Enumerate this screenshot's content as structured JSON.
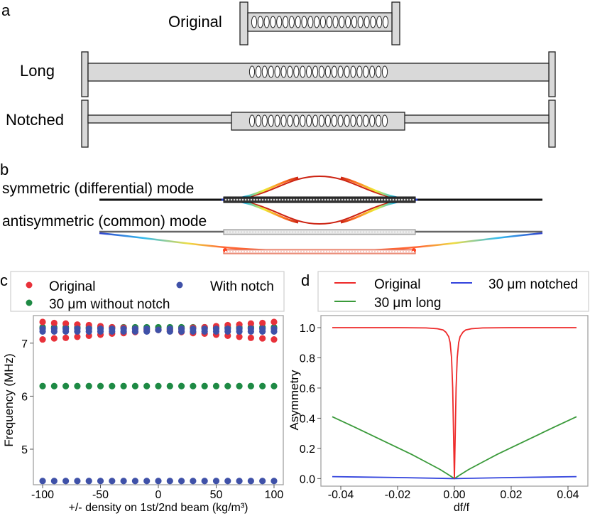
{
  "panel_a": {
    "label": "a",
    "devices": [
      {
        "name": "Original"
      },
      {
        "name": "Long"
      },
      {
        "name": "Notched"
      }
    ]
  },
  "panel_b": {
    "label": "b",
    "modes": [
      {
        "name": "symmetric (differential) mode"
      },
      {
        "name": "antisymmetric (common) mode"
      }
    ]
  },
  "panel_c": {
    "label": "c",
    "legend": [
      "Original",
      "With notch",
      "30 μm without notch"
    ]
  },
  "panel_d": {
    "label": "d",
    "legend": [
      "Original",
      "30 μm notched",
      "30 μm long"
    ]
  },
  "colors": {
    "original_c": "#e8313a",
    "notch_c": "#3f51a8",
    "nonotch_c": "#1e8a44",
    "original_d": "#ee2a2a",
    "long_d": "#3a9a3a",
    "notched_d": "#3344dd",
    "device_fill": "#d9d9d9"
  },
  "chart_data": [
    {
      "type": "scatter",
      "xlabel": "+/- density on 1st/2nd beam (kg/m³)",
      "ylabel": "Frequency (MHz)",
      "xlim": [
        -108,
        108
      ],
      "ylim": [
        4.33,
        7.52
      ],
      "xticks": [
        -100,
        -50,
        0,
        50,
        100
      ],
      "yticks": [
        5,
        6,
        7
      ],
      "grid": false,
      "legend_position": "top",
      "x": [
        -100,
        -90,
        -80,
        -70,
        -60,
        -50,
        -40,
        -30,
        -20,
        -10,
        0,
        10,
        20,
        30,
        40,
        50,
        60,
        70,
        80,
        90,
        100
      ],
      "series": [
        {
          "name": "Original",
          "color_key": "original_c",
          "upper": [
            7.4,
            7.38,
            7.37,
            7.35,
            7.34,
            7.32,
            7.3,
            7.29,
            7.27,
            7.26,
            7.25,
            7.26,
            7.27,
            7.29,
            7.3,
            7.32,
            7.34,
            7.35,
            7.37,
            7.38,
            7.4
          ],
          "lower": [
            7.07,
            7.09,
            7.1,
            7.12,
            7.14,
            7.16,
            7.18,
            7.19,
            7.21,
            7.23,
            7.25,
            7.23,
            7.21,
            7.19,
            7.18,
            7.16,
            7.14,
            7.12,
            7.1,
            7.09,
            7.07
          ]
        },
        {
          "name": "With notch",
          "color_key": "notch_c",
          "upper": [
            7.27,
            7.27,
            7.27,
            7.27,
            7.27,
            7.27,
            7.27,
            7.27,
            7.27,
            7.27,
            7.25,
            7.27,
            7.27,
            7.27,
            7.27,
            7.27,
            7.27,
            7.27,
            7.27,
            7.27,
            7.27
          ],
          "lower": [
            7.22,
            7.22,
            7.22,
            7.22,
            7.22,
            7.22,
            7.22,
            7.22,
            7.22,
            7.22,
            7.25,
            7.22,
            7.22,
            7.22,
            7.22,
            7.22,
            7.22,
            7.22,
            7.22,
            7.22,
            7.22
          ],
          "low_mode": [
            4.4,
            4.4,
            4.4,
            4.4,
            4.4,
            4.4,
            4.4,
            4.4,
            4.4,
            4.4,
            4.4,
            4.4,
            4.4,
            4.4,
            4.4,
            4.4,
            4.4,
            4.4,
            4.4,
            4.4,
            4.4
          ]
        },
        {
          "name": "30 μm without notch",
          "color_key": "nonotch_c",
          "upper": [
            7.3,
            7.3,
            7.3,
            7.3,
            7.3,
            7.3,
            7.3,
            7.3,
            7.3,
            7.3,
            7.3,
            7.3,
            7.3,
            7.3,
            7.3,
            7.3,
            7.3,
            7.3,
            7.3,
            7.3,
            7.3
          ],
          "lower": [
            6.19,
            6.19,
            6.19,
            6.19,
            6.19,
            6.19,
            6.19,
            6.19,
            6.19,
            6.19,
            6.19,
            6.19,
            6.19,
            6.19,
            6.19,
            6.19,
            6.19,
            6.19,
            6.19,
            6.19,
            6.19
          ]
        }
      ]
    },
    {
      "type": "line",
      "xlabel": "df/f",
      "ylabel": "Asymmetry",
      "xlim": [
        -0.047,
        0.047
      ],
      "ylim": [
        -0.05,
        1.08
      ],
      "xticks": [
        -0.04,
        -0.02,
        0.0,
        0.02,
        0.04
      ],
      "xticklabels": [
        "-0.04",
        "-0.02",
        "0.00",
        "0.02",
        "0.04"
      ],
      "yticks": [
        0.0,
        0.2,
        0.4,
        0.6,
        0.8,
        1.0
      ],
      "yticklabels": [
        "0.0",
        "0.2",
        "0.4",
        "0.6",
        "0.8",
        "1.0"
      ],
      "grid": false,
      "legend_position": "top",
      "series": [
        {
          "name": "Original",
          "color_key": "original_d",
          "x": [
            -0.043,
            -0.03,
            -0.02,
            -0.01,
            -0.006,
            -0.004,
            -0.003,
            -0.002,
            -0.0015,
            -0.001,
            -0.0006,
            -0.0003,
            0.0,
            0.0003,
            0.0006,
            0.001,
            0.0015,
            0.002,
            0.003,
            0.004,
            0.006,
            0.01,
            0.02,
            0.03,
            0.043
          ],
          "y": [
            1.0,
            1.0,
            1.0,
            0.998,
            0.993,
            0.985,
            0.97,
            0.94,
            0.9,
            0.8,
            0.6,
            0.3,
            0.0,
            0.3,
            0.6,
            0.8,
            0.9,
            0.94,
            0.97,
            0.985,
            0.993,
            0.998,
            1.0,
            1.0,
            1.0
          ]
        },
        {
          "name": "30 μm long",
          "color_key": "long_d",
          "x": [
            -0.043,
            -0.035,
            -0.025,
            -0.015,
            -0.01,
            -0.005,
            -0.002,
            0.0,
            0.002,
            0.005,
            0.01,
            0.015,
            0.025,
            0.035,
            0.043
          ],
          "y": [
            0.41,
            0.34,
            0.25,
            0.16,
            0.11,
            0.06,
            0.025,
            0.0,
            0.025,
            0.06,
            0.11,
            0.16,
            0.25,
            0.34,
            0.41
          ]
        },
        {
          "name": "30 μm notched",
          "color_key": "notched_d",
          "x": [
            -0.043,
            -0.02,
            0.0,
            0.02,
            0.043
          ],
          "y": [
            0.013,
            0.007,
            0.0,
            0.007,
            0.013
          ]
        }
      ]
    }
  ]
}
